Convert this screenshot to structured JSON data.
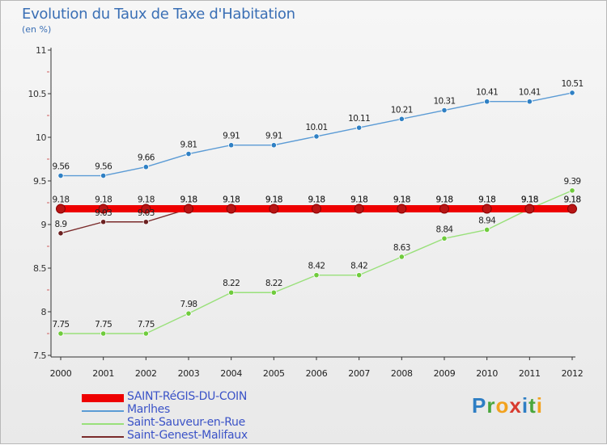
{
  "title": "Evolution du Taux de Taxe d'Habitation",
  "subtitle": "(en %)",
  "logo_text": "Proxiti",
  "chart_data": {
    "type": "line",
    "title": "Evolution du Taux de Taxe d'Habitation",
    "subtitle": "(en %)",
    "xlabel": "",
    "ylabel": "",
    "x": [
      "2000",
      "2001",
      "2002",
      "2003",
      "2004",
      "2005",
      "2006",
      "2007",
      "2008",
      "2009",
      "2010",
      "2011",
      "2012"
    ],
    "ylim": [
      7.5,
      11
    ],
    "yticks": [
      "7.5",
      "8",
      "8.5",
      "9",
      "9.5",
      "10",
      "10.5",
      "11"
    ],
    "grid": false,
    "legend_position": "bottom-left",
    "series": [
      {
        "name": "SAINT-RéGIS-DU-COIN",
        "color": "#ee0000",
        "marker": "#b81414",
        "values": [
          9.18,
          9.18,
          9.18,
          9.18,
          9.18,
          9.18,
          9.18,
          9.18,
          9.18,
          9.18,
          9.18,
          9.18,
          9.18
        ],
        "labels": [
          "9.18",
          "9.18",
          "9.18",
          "9.18",
          "9.18",
          "9.18",
          "9.18",
          "9.18",
          "9.18",
          "9.18",
          "9.18",
          "9.18",
          "9.18"
        ]
      },
      {
        "name": "Marlhes",
        "color": "#5b9bd5",
        "marker": "#2f80c4",
        "values": [
          9.56,
          9.56,
          9.66,
          9.81,
          9.91,
          9.91,
          10.01,
          10.11,
          10.21,
          10.31,
          10.41,
          10.41,
          10.51
        ],
        "labels": [
          "9.56",
          "9.56",
          "9.66",
          "9.81",
          "9.91",
          "9.91",
          "10.01",
          "10.11",
          "10.21",
          "10.31",
          "10.41",
          "10.41",
          "10.51"
        ]
      },
      {
        "name": "Saint-Sauveur-en-Rue",
        "color": "#99e07a",
        "marker": "#6fcb3c",
        "values": [
          7.75,
          7.75,
          7.75,
          7.98,
          8.22,
          8.22,
          8.42,
          8.42,
          8.63,
          8.84,
          8.94,
          9.18,
          9.39
        ],
        "labels": [
          "7.75",
          "7.75",
          "7.75",
          "7.98",
          "8.22",
          "8.22",
          "8.42",
          "8.42",
          "8.63",
          "8.84",
          "8.94",
          "9.18",
          "9.39"
        ]
      },
      {
        "name": "Saint-Genest-Malifaux",
        "color": "#7a2a2a",
        "marker": "#6b2020",
        "values": [
          8.9,
          9.03,
          9.03,
          9.18,
          9.18,
          9.18,
          9.18,
          9.18,
          9.18,
          9.18,
          9.18,
          9.18,
          9.18
        ],
        "labels": [
          "8.9",
          "9.03",
          "9.03",
          "9.18",
          "9.18",
          "9.18",
          "9.18",
          "9.18",
          "9.18",
          "9.18",
          "9.18",
          "9.18",
          "9.18"
        ]
      }
    ]
  }
}
